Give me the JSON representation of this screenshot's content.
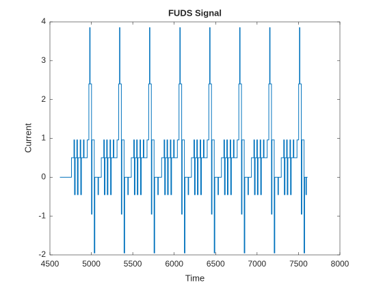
{
  "chart_data": {
    "type": "line",
    "title": "FUDS Signal",
    "xlabel": "Time",
    "ylabel": "Current",
    "drawstyle": "steps-post",
    "xlim": [
      4500,
      8000
    ],
    "xticks": [
      4500,
      5000,
      5500,
      6000,
      6500,
      7000,
      7500,
      8000
    ],
    "ylim": [
      -2,
      4
    ],
    "yticks": [
      -2,
      -1,
      0,
      1,
      2,
      3,
      4
    ],
    "x": [
      4620,
      4760,
      4790,
      4797,
      4805,
      4825,
      4832,
      4840,
      4865,
      4872,
      4880,
      4905,
      4912,
      4950,
      4970,
      4980,
      4985,
      5002,
      5008,
      5035,
      5042,
      5080,
      5086,
      5120,
      5150,
      5157,
      5165,
      5185,
      5192,
      5200,
      5225,
      5232,
      5240,
      5265,
      5272,
      5310,
      5330,
      5340,
      5345,
      5362,
      5368,
      5395,
      5402,
      5440,
      5446,
      5482,
      5512,
      5519,
      5527,
      5547,
      5554,
      5562,
      5587,
      5594,
      5602,
      5627,
      5634,
      5672,
      5692,
      5702,
      5707,
      5724,
      5730,
      5757,
      5764,
      5802,
      5808,
      5848,
      5878,
      5885,
      5893,
      5913,
      5920,
      5928,
      5953,
      5960,
      5968,
      5993,
      6000,
      6038,
      6058,
      6068,
      6073,
      6090,
      6096,
      6123,
      6130,
      6168,
      6174,
      6208,
      6238,
      6245,
      6253,
      6273,
      6280,
      6288,
      6313,
      6320,
      6328,
      6353,
      6360,
      6398,
      6418,
      6428,
      6433,
      6450,
      6456,
      6483,
      6490,
      6528,
      6534,
      6570,
      6600,
      6607,
      6615,
      6635,
      6642,
      6650,
      6675,
      6682,
      6690,
      6715,
      6722,
      6760,
      6780,
      6790,
      6795,
      6812,
      6818,
      6845,
      6852,
      6890,
      6896,
      6932,
      6962,
      6969,
      6977,
      6997,
      7004,
      7012,
      7037,
      7044,
      7052,
      7077,
      7084,
      7122,
      7142,
      7152,
      7157,
      7174,
      7180,
      7207,
      7214,
      7252,
      7258,
      7292,
      7322,
      7329,
      7337,
      7357,
      7364,
      7372,
      7397,
      7404,
      7412,
      7437,
      7444,
      7482,
      7502,
      7512,
      7517,
      7534,
      7541,
      7567,
      7574,
      7590,
      7596,
      7610
    ],
    "series": [
      {
        "name": "Current",
        "color": "#0072bd",
        "values": [
          0,
          0.5,
          0.96,
          -0.45,
          0.5,
          0.96,
          -0.45,
          0.5,
          0.96,
          -0.45,
          0.5,
          0.96,
          0.5,
          0.96,
          2.4,
          3.85,
          2.4,
          -0.95,
          0.96,
          -1.95,
          0,
          -0.45,
          0,
          0.5,
          0.96,
          -0.45,
          0.5,
          0.96,
          -0.45,
          0.5,
          0.96,
          -0.45,
          0.5,
          0.96,
          0.5,
          0.96,
          2.4,
          3.85,
          2.4,
          -0.95,
          0.96,
          -1.95,
          0,
          -0.45,
          0,
          0.5,
          0.96,
          -0.45,
          0.5,
          0.96,
          -0.45,
          0.5,
          0.96,
          -0.45,
          0.5,
          0.96,
          0.5,
          0.96,
          2.4,
          3.85,
          2.4,
          -0.95,
          0.96,
          -1.95,
          0,
          -0.45,
          0,
          0.5,
          0.96,
          -0.45,
          0.5,
          0.96,
          -0.45,
          0.5,
          0.96,
          -0.45,
          0.5,
          0.96,
          0.5,
          0.96,
          2.4,
          3.85,
          2.4,
          -0.95,
          0.96,
          -1.95,
          0,
          -0.45,
          0,
          0.5,
          0.96,
          -0.45,
          0.5,
          0.96,
          -0.45,
          0.5,
          0.96,
          -0.45,
          0.5,
          0.96,
          0.5,
          0.96,
          2.4,
          3.85,
          2.4,
          -0.95,
          0.96,
          -1.95,
          0,
          -0.45,
          0,
          0.5,
          0.96,
          -0.45,
          0.5,
          0.96,
          -0.45,
          0.5,
          0.96,
          -0.45,
          0.5,
          0.96,
          0.5,
          0.96,
          2.4,
          3.85,
          2.4,
          -0.95,
          0.96,
          -1.95,
          0,
          -0.45,
          0,
          0.5,
          0.96,
          -0.45,
          0.5,
          0.96,
          -0.45,
          0.5,
          0.96,
          -0.45,
          0.5,
          0.96,
          0.5,
          0.96,
          2.4,
          3.85,
          2.4,
          -0.95,
          0.96,
          -1.95,
          0,
          -0.45,
          0,
          0.5,
          0.96,
          -0.45,
          0.5,
          0.96,
          -0.45,
          0.5,
          0.96,
          -0.45,
          0.5,
          0.96,
          0.5,
          0.96,
          2.4,
          3.85,
          2.4,
          -0.95,
          0.96,
          -1.95,
          0,
          -0.45,
          0,
          0
        ]
      }
    ]
  }
}
